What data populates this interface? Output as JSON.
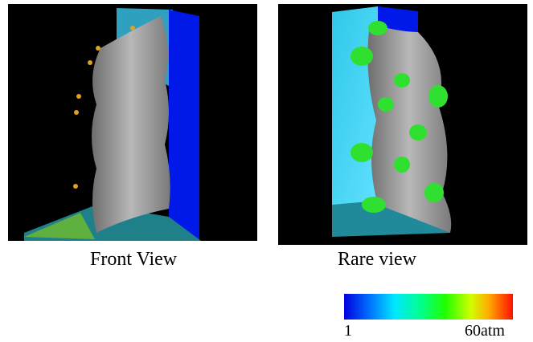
{
  "figure": {
    "panels": [
      {
        "caption": "Front View"
      },
      {
        "caption": "Rare view"
      }
    ],
    "colorbar": {
      "min_label": "1",
      "max_label": "60atm"
    }
  }
}
